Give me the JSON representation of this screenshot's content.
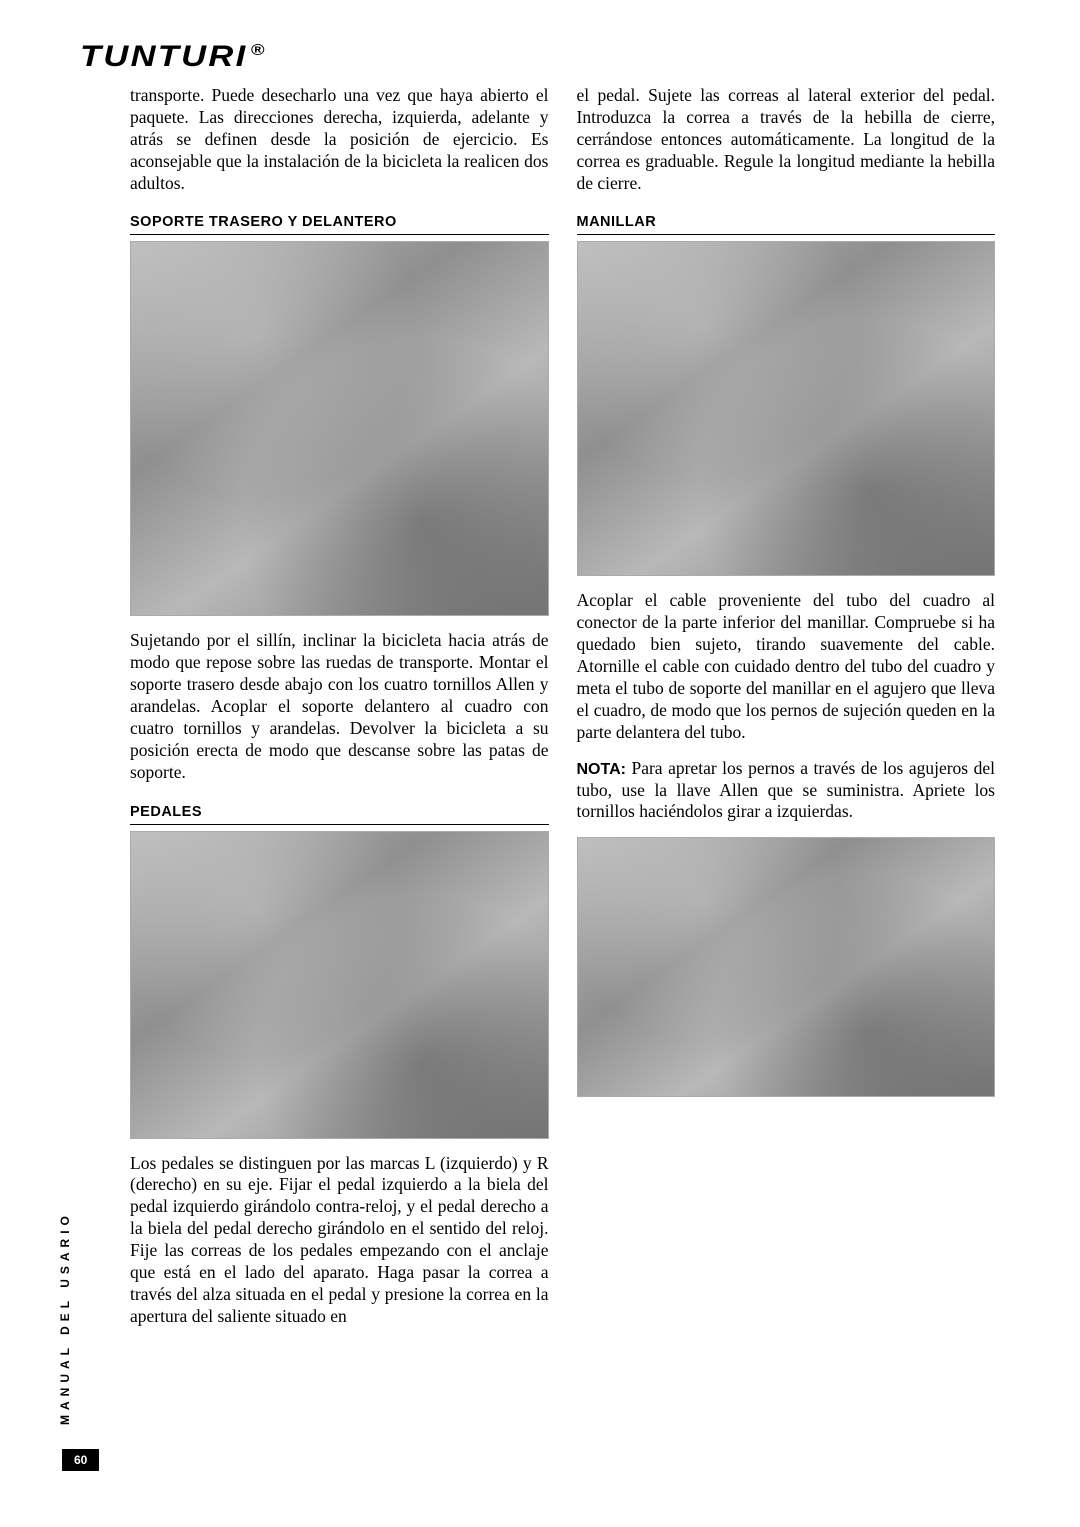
{
  "brand": "TUNTURI",
  "registered": "®",
  "side_label": "MANUAL DEL USARIO",
  "page_number": "60",
  "left": {
    "intro": "transporte. Puede desecharlo una vez que haya abierto el paquete. Las direcciones derecha, izquierda, adelante y atrás se definen desde la posición de ejercicio. Es aconsejable que la instalación de la bicicleta la realicen dos adultos.",
    "h1": "SOPORTE TRASERO Y DELANTERO",
    "p1": "Sujetando por el sillín, inclinar la bicicleta hacia atrás de modo que repose sobre las ruedas de transporte. Montar el soporte trasero desde abajo con los cuatro tornillos Allen y arandelas. Acoplar el soporte delantero al cuadro con cuatro tornillos y arandelas. Devolver la bicicleta a su posición erecta de modo que descanse sobre las patas de soporte.",
    "h2": "PEDALES",
    "p2": "Los pedales se distinguen por las marcas L (izquierdo) y R (derecho) en su eje. Fijar el pedal izquierdo a la biela del pedal izquierdo girándolo contra-reloj, y el pedal derecho a la biela del pedal derecho girándolo en el sentido del reloj. Fije las correas de los pedales empezando con el anclaje que está en el lado del aparato. Haga pasar la correa a través del alza situada en el pedal y presione la correa en la apertura del saliente situado en"
  },
  "right": {
    "intro": "el pedal. Sujete las correas al lateral exterior del pedal. Introduzca la correa a través de la hebilla de cierre, cerrándose entonces automáticamente. La longitud de la correa es graduable. Regule la longitud mediante la hebilla de cierre.",
    "h1": "MANILLAR",
    "p1": "Acoplar el cable proveniente del tubo del cuadro al conector de la parte inferior del manillar.  Compruebe si ha quedado bien sujeto, tirando suavemente del cable. Atornille el cable con cuidado dentro del tubo del cuadro y meta el tubo de soporte del manillar en el agujero que lleva el cuadro, de modo que los pernos de sujeción queden en la parte delantera del tubo.",
    "nota_label": "NOTA:",
    "nota": " Para apretar los pernos a través de los agujeros del tubo, use la llave Allen que se suministra. Apriete los tornillos haciéndolos girar a izquierdas."
  }
}
